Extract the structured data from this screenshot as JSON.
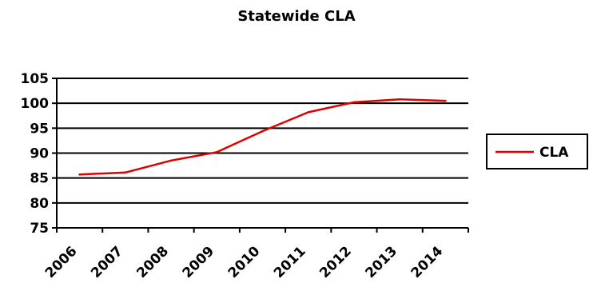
{
  "chart_data": {
    "type": "line",
    "title": "Statewide CLA",
    "categories": [
      "2006",
      "2007",
      "2008",
      "2009",
      "2010",
      "2011",
      "2012",
      "2013",
      "2014"
    ],
    "series": [
      {
        "name": "CLA",
        "color": "#e00000",
        "values": [
          85.7,
          86.1,
          88.5,
          90.2,
          94.4,
          98.2,
          100.2,
          100.8,
          100.5
        ]
      }
    ],
    "ylim": [
      75,
      105
    ],
    "yticks": [
      75,
      80,
      85,
      90,
      95,
      100,
      105
    ],
    "grid": true,
    "legend_position": "right"
  }
}
